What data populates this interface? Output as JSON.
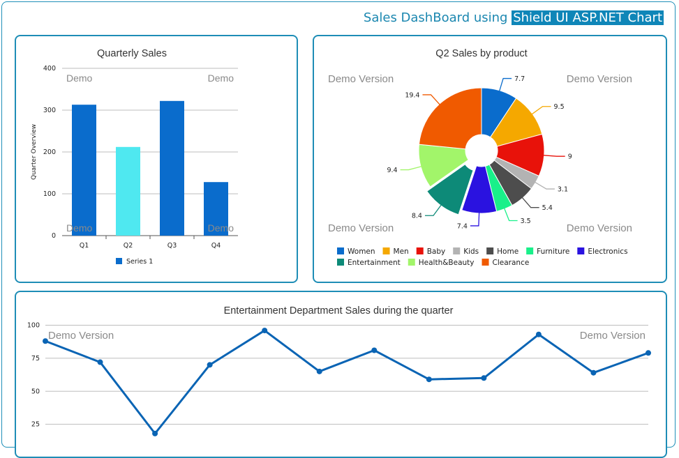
{
  "header": {
    "title_prefix": "Sales DashBoard using",
    "title_highlight": "Shield UI ASP.NET Chart"
  },
  "colors": {
    "accent": "#1e8db6"
  },
  "chart_data": [
    {
      "type": "bar",
      "title": "Quarterly Sales",
      "ylabel": "Quarter Overview",
      "xlabel": "",
      "categories": [
        "Q1",
        "Q2",
        "Q3",
        "Q4"
      ],
      "series": [
        {
          "name": "Series 1",
          "values": [
            313,
            212,
            322,
            128
          ]
        }
      ],
      "point_colors": [
        "#0a6ccc",
        "#4fe8f0",
        "#0a6ccc",
        "#0a6ccc"
      ],
      "ylim": [
        0,
        400
      ],
      "yticks": [
        0,
        100,
        200,
        300,
        400
      ],
      "grid": true,
      "legend": "bottom",
      "watermarks": [
        "Demo",
        "Demo",
        "Demo",
        "Demo"
      ]
    },
    {
      "type": "pie",
      "title": "Q2 Sales by product",
      "slices": [
        {
          "label": "Women",
          "value": 7.7,
          "color": "#0a6ccc"
        },
        {
          "label": "Men",
          "value": 9.5,
          "color": "#f5a800"
        },
        {
          "label": "Baby",
          "value": 9,
          "color": "#e8120a"
        },
        {
          "label": "Kids",
          "value": 3.1,
          "color": "#b3b3b3"
        },
        {
          "label": "Home",
          "value": 5.4,
          "color": "#4d4d4d"
        },
        {
          "label": "Furniture",
          "value": 3.5,
          "color": "#19f08a"
        },
        {
          "label": "Electronics",
          "value": 7.4,
          "color": "#2a12e0"
        },
        {
          "label": "Entertainment",
          "value": 8.4,
          "color": "#0d8a78"
        },
        {
          "label": "Health&Beauty",
          "value": 9.4,
          "color": "#a2f56a"
        },
        {
          "label": "Clearance",
          "value": 19.4,
          "color": "#f05a00"
        }
      ],
      "legend": "bottom",
      "watermarks": [
        "Demo Version",
        "Demo Version",
        "Demo Version",
        "Demo Version"
      ]
    },
    {
      "type": "line",
      "title": "Entertainment Department Sales during the quarter",
      "values": [
        88,
        72,
        18,
        70,
        96,
        65,
        81,
        59,
        60,
        93,
        64,
        79
      ],
      "color": "#0a64b4",
      "yticks": [
        25,
        50,
        75,
        100
      ],
      "grid": true,
      "watermarks": [
        "Demo Version",
        "Demo Version"
      ]
    }
  ]
}
